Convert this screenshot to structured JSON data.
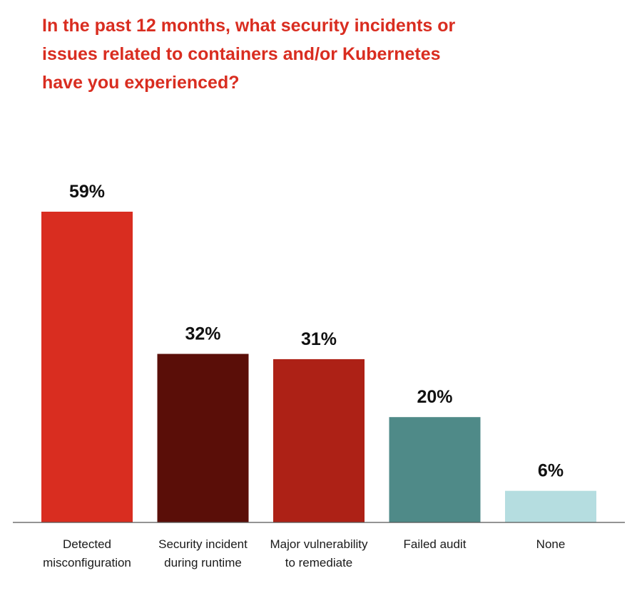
{
  "chart_data": {
    "type": "bar",
    "title": "In the past 12 months, what security incidents or\nissues related to containers and/or Kubernetes\nhave you experienced?",
    "categories": [
      [
        "Detected",
        "misconfiguration"
      ],
      [
        "Security incident",
        "during runtime"
      ],
      [
        "Major vulnerability",
        "to remediate"
      ],
      [
        "Failed audit"
      ],
      [
        "None"
      ]
    ],
    "values": [
      59,
      32,
      31,
      20,
      6
    ],
    "value_labels": [
      "59%",
      "32%",
      "31%",
      "20%",
      "6%"
    ],
    "bar_colors": [
      "#d92d20",
      "#5a0e08",
      "#ad2116",
      "#4f8a88",
      "#b5dde0"
    ],
    "title_color": "#d92d20",
    "ylim": [
      0,
      59
    ],
    "grid": false,
    "legend": "none"
  }
}
